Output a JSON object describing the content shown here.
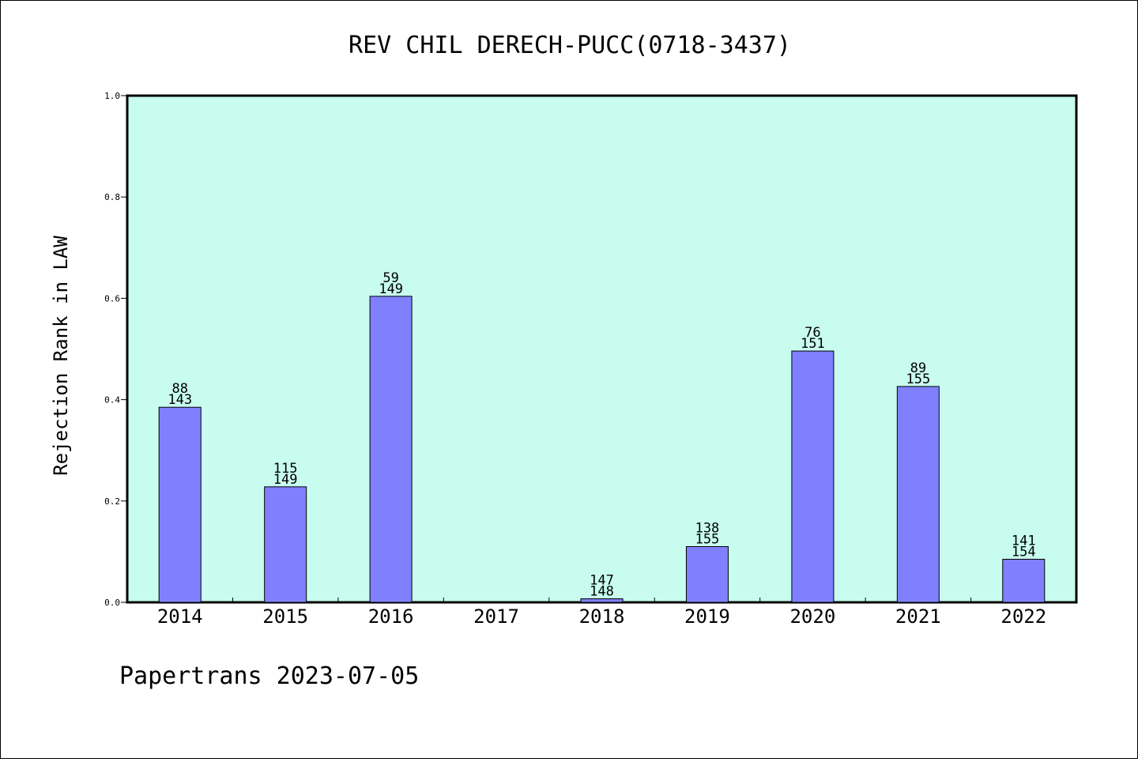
{
  "chart_data": {
    "type": "bar",
    "title": "REV CHIL DERECH-PUCC(0718-3437)",
    "xlabel": "",
    "ylabel": "Rejection Rank in LAW",
    "ylim": [
      0,
      1.0
    ],
    "yticks": [
      "0.0",
      "0.2",
      "0.4",
      "0.6",
      "0.8",
      "1.0"
    ],
    "grid": false,
    "categories": [
      "2014",
      "2015",
      "2016",
      "2017",
      "2018",
      "2019",
      "2020",
      "2021",
      "2022"
    ],
    "values": [
      0.385,
      0.228,
      0.604,
      null,
      0.007,
      0.11,
      0.496,
      0.426,
      0.085
    ],
    "rank": [
      "88",
      "115",
      "59",
      "",
      "147",
      "138",
      "76",
      "89",
      "141"
    ],
    "total": [
      "143",
      "149",
      "149",
      "",
      "148",
      "155",
      "151",
      "155",
      "154"
    ],
    "colors": {
      "plot_bg": "#c8fcee",
      "bar": "#8080ff",
      "axis": "#000000"
    }
  },
  "footer": {
    "text": "Papertrans 2023-07-05"
  }
}
